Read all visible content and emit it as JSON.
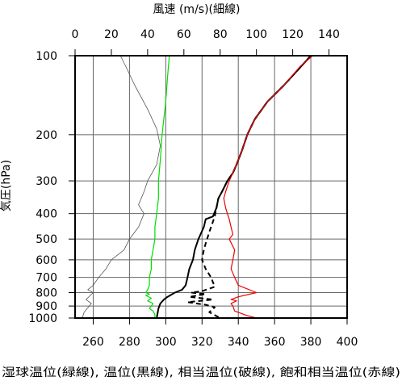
{
  "chart_data": {
    "type": "line",
    "title": "",
    "top_axis": {
      "label": "風速 (m/s)(細線)",
      "ticks": [
        0,
        20,
        40,
        60,
        80,
        100,
        120,
        140
      ],
      "range": [
        0,
        150
      ]
    },
    "bottom_axis": {
      "label": "湿球温位(緑線), 温位(黒線), 相当温位(破線), 飽和相当温位(赤線)",
      "ticks": [
        260,
        280,
        300,
        320,
        340,
        360,
        380,
        400
      ],
      "range": [
        250,
        400
      ]
    },
    "y_axis": {
      "label": "気圧(hPa)",
      "scale": "log",
      "inverted": true,
      "ticks": [
        100,
        200,
        300,
        400,
        500,
        600,
        700,
        800,
        900,
        1000
      ],
      "range": [
        100,
        1000
      ]
    },
    "grid": true,
    "series": [
      {
        "name": "風速",
        "axis": "top",
        "color": "#555555",
        "style": "thin",
        "points": [
          [
            25,
            100
          ],
          [
            28,
            110
          ],
          [
            33,
            130
          ],
          [
            40,
            160
          ],
          [
            45,
            190
          ],
          [
            47,
            220
          ],
          [
            45,
            260
          ],
          [
            40,
            300
          ],
          [
            38,
            330
          ],
          [
            35,
            370
          ],
          [
            38,
            400
          ],
          [
            35,
            450
          ],
          [
            30,
            500
          ],
          [
            27,
            550
          ],
          [
            20,
            600
          ],
          [
            17,
            650
          ],
          [
            13,
            700
          ],
          [
            10,
            750
          ],
          [
            7,
            780
          ],
          [
            10,
            800
          ],
          [
            6,
            850
          ],
          [
            9,
            880
          ],
          [
            5,
            950
          ],
          [
            4,
            1000
          ]
        ]
      },
      {
        "name": "湿球温位",
        "axis": "bottom",
        "color": "#00dd00",
        "style": "solid",
        "points": [
          [
            302,
            100
          ],
          [
            301,
            120
          ],
          [
            300,
            150
          ],
          [
            298,
            200
          ],
          [
            297,
            250
          ],
          [
            296,
            300
          ],
          [
            296,
            350
          ],
          [
            295,
            400
          ],
          [
            294,
            450
          ],
          [
            294,
            500
          ],
          [
            293,
            550
          ],
          [
            292,
            600
          ],
          [
            292,
            650
          ],
          [
            291,
            700
          ],
          [
            291,
            750
          ],
          [
            290,
            780
          ],
          [
            289,
            800
          ],
          [
            291,
            810
          ],
          [
            289,
            820
          ],
          [
            292,
            840
          ],
          [
            290,
            860
          ],
          [
            293,
            880
          ],
          [
            292,
            900
          ],
          [
            291,
            920
          ],
          [
            293,
            940
          ],
          [
            294,
            970
          ],
          [
            294,
            1000
          ]
        ]
      },
      {
        "name": "温位",
        "axis": "bottom",
        "color": "#000000",
        "style": "solid",
        "points": [
          [
            380,
            100
          ],
          [
            372,
            115
          ],
          [
            365,
            130
          ],
          [
            356,
            150
          ],
          [
            349,
            175
          ],
          [
            345,
            200
          ],
          [
            342,
            230
          ],
          [
            339,
            260
          ],
          [
            337,
            280
          ],
          [
            334,
            300
          ],
          [
            331,
            330
          ],
          [
            329,
            350
          ],
          [
            328,
            380
          ],
          [
            326,
            410
          ],
          [
            322,
            420
          ],
          [
            321,
            450
          ],
          [
            318,
            500
          ],
          [
            316,
            550
          ],
          [
            315,
            600
          ],
          [
            313,
            650
          ],
          [
            312,
            700
          ],
          [
            311,
            750
          ],
          [
            309,
            780
          ],
          [
            305,
            800
          ],
          [
            301,
            830
          ],
          [
            299,
            850
          ],
          [
            297,
            880
          ],
          [
            296,
            920
          ],
          [
            295,
            1000
          ]
        ]
      },
      {
        "name": "相当温位",
        "axis": "bottom",
        "color": "#000000",
        "style": "dashed",
        "points": [
          [
            380,
            100
          ],
          [
            372,
            115
          ],
          [
            365,
            130
          ],
          [
            356,
            150
          ],
          [
            349,
            175
          ],
          [
            345,
            200
          ],
          [
            342,
            230
          ],
          [
            339,
            260
          ],
          [
            337,
            280
          ],
          [
            334,
            300
          ],
          [
            331,
            330
          ],
          [
            329,
            350
          ],
          [
            328,
            380
          ],
          [
            327,
            410
          ],
          [
            326,
            430
          ],
          [
            324,
            470
          ],
          [
            322,
            520
          ],
          [
            321,
            550
          ],
          [
            320,
            600
          ],
          [
            322,
            650
          ],
          [
            325,
            700
          ],
          [
            327,
            760
          ],
          [
            320,
            790
          ],
          [
            314,
            800
          ],
          [
            322,
            810
          ],
          [
            313,
            830
          ],
          [
            326,
            850
          ],
          [
            312,
            870
          ],
          [
            322,
            890
          ],
          [
            327,
            910
          ],
          [
            324,
            950
          ],
          [
            330,
            1000
          ]
        ]
      },
      {
        "name": "飽和相当温位",
        "axis": "bottom",
        "color": "#ee0000",
        "style": "solid",
        "points": [
          [
            381,
            100
          ],
          [
            374,
            110
          ],
          [
            365,
            130
          ],
          [
            356,
            150
          ],
          [
            349,
            175
          ],
          [
            345,
            200
          ],
          [
            342,
            230
          ],
          [
            339,
            260
          ],
          [
            337,
            280
          ],
          [
            335,
            300
          ],
          [
            333,
            330
          ],
          [
            332,
            350
          ],
          [
            333,
            380
          ],
          [
            334,
            400
          ],
          [
            335,
            420
          ],
          [
            336,
            450
          ],
          [
            337,
            480
          ],
          [
            335,
            500
          ],
          [
            338,
            550
          ],
          [
            337,
            600
          ],
          [
            336,
            650
          ],
          [
            338,
            700
          ],
          [
            340,
            750
          ],
          [
            350,
            800
          ],
          [
            340,
            830
          ],
          [
            336,
            850
          ],
          [
            339,
            860
          ],
          [
            336,
            880
          ],
          [
            337,
            900
          ],
          [
            338,
            940
          ],
          [
            345,
            980
          ],
          [
            350,
            1000
          ]
        ]
      }
    ]
  }
}
